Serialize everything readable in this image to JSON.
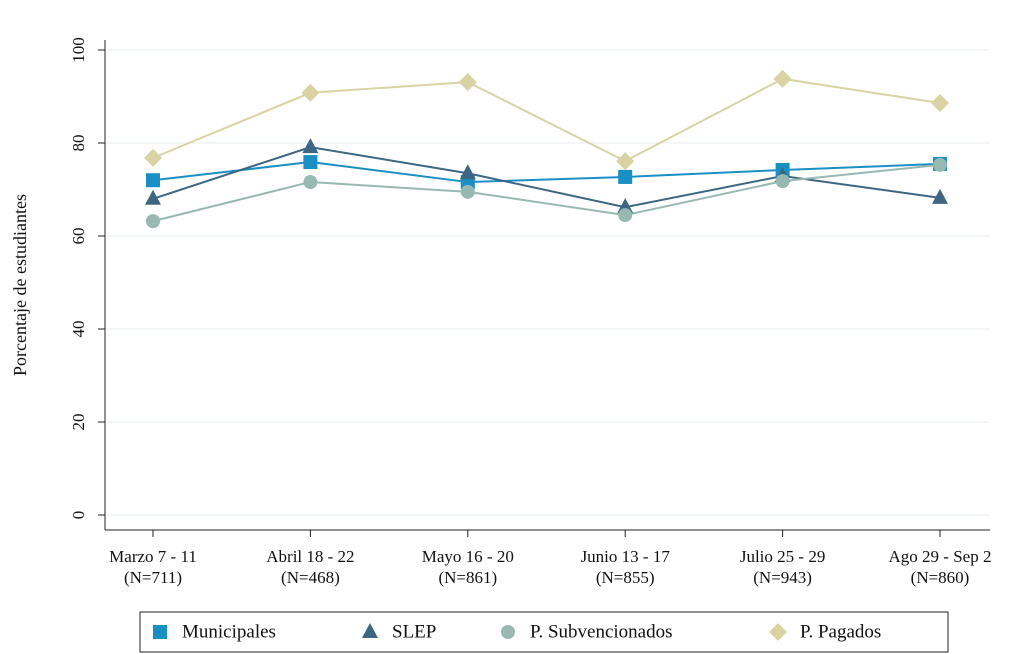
{
  "chart_data": {
    "type": "line",
    "y_label": "Porcentaje de estudiantes",
    "categories": [
      "Marzo 7 - 11",
      "Abril 18 - 22",
      "Mayo 16 - 20",
      "Junio 13 - 17",
      "Julio 25 - 29",
      "Ago 29 - Sep 2"
    ],
    "sample_sizes": [
      "(N=711)",
      "(N=468)",
      "(N=861)",
      "(N=855)",
      "(N=943)",
      "(N=860)"
    ],
    "series": [
      {
        "name": "Municipales",
        "color": "#1a8fc4",
        "marker": "square",
        "values": [
          72.0,
          75.9,
          71.6,
          72.7,
          74.2,
          75.5
        ]
      },
      {
        "name": "SLEP",
        "color": "#3d6683",
        "marker": "triangle",
        "values": [
          68.0,
          79.1,
          73.5,
          66.2,
          72.9,
          68.2
        ]
      },
      {
        "name": "P. Subvencionados",
        "color": "#98b8b2",
        "marker": "circle",
        "values": [
          63.2,
          71.6,
          69.5,
          64.5,
          71.8,
          75.3
        ]
      },
      {
        "name": "P. Pagados",
        "color": "#d9d3a3",
        "marker": "diamond",
        "values": [
          76.8,
          90.8,
          93.1,
          76.1,
          93.8,
          88.6
        ]
      }
    ],
    "ylim": [
      0,
      100
    ],
    "yticks": [
      0,
      20,
      40,
      60,
      80,
      100
    ],
    "grid": true,
    "legend": "bottom"
  }
}
